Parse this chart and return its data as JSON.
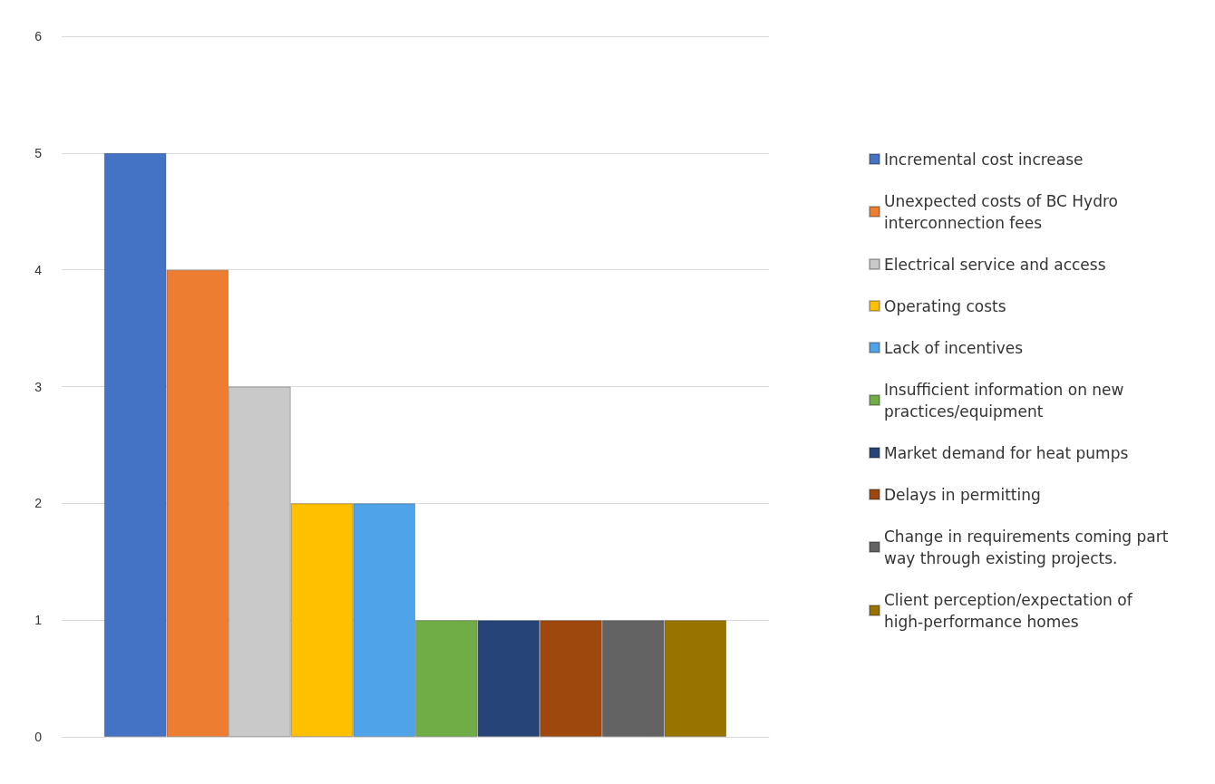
{
  "chart_data": {
    "type": "bar",
    "categories": [
      null
    ],
    "series": [
      {
        "name": "Incremental cost increase",
        "color": "#4472c4",
        "values": [
          5
        ]
      },
      {
        "name": "Unexpected costs of BC Hydro interconnection fees",
        "color": "#ed7d31",
        "values": [
          4
        ]
      },
      {
        "name": "Electrical service and access",
        "color": "#c9c9c9",
        "values": [
          3
        ]
      },
      {
        "name": "Operating costs",
        "color": "#ffc000",
        "values": [
          2
        ]
      },
      {
        "name": "Lack of incentives",
        "color": "#4fa3e8",
        "values": [
          2
        ]
      },
      {
        "name": "Insufficient information on new practices/equipment",
        "color": "#70ad47",
        "values": [
          1
        ]
      },
      {
        "name": "Market demand for heat pumps",
        "color": "#264478",
        "values": [
          1
        ]
      },
      {
        "name": "Delays in permitting",
        "color": "#9e480e",
        "values": [
          1
        ]
      },
      {
        "name": "Change in requirements coming part way through existing projects.",
        "color": "#636363",
        "values": [
          1
        ]
      },
      {
        "name": "Client perception/expectation of high-performance homes",
        "color": "#997300",
        "values": [
          1
        ]
      }
    ],
    "ylim": [
      0,
      6
    ],
    "yticks": [
      0,
      1,
      2,
      3,
      4,
      5,
      6
    ],
    "grid": "y",
    "legend": "right"
  }
}
